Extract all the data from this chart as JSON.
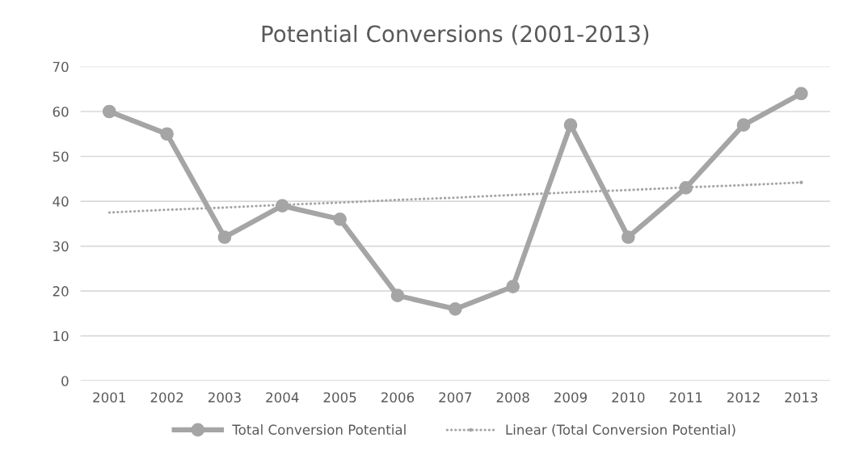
{
  "chart_data": {
    "type": "line",
    "title": "Potential Conversions (2001-2013)",
    "categories": [
      "2001",
      "2002",
      "2003",
      "2004",
      "2005",
      "2006",
      "2007",
      "2008",
      "2009",
      "2010",
      "2011",
      "2012",
      "2013"
    ],
    "series": [
      {
        "name": "Total Conversion Potential",
        "color": "#a5a5a5",
        "marker": "circle",
        "line_style": "solid",
        "values": [
          60,
          55,
          32,
          39,
          36,
          19,
          16,
          21,
          57,
          32,
          43,
          57,
          64
        ]
      },
      {
        "name": "Linear (Total Conversion Potential)",
        "type": "line",
        "color": "#a5a5a5",
        "marker": "none",
        "line_style": "dotted",
        "values": [
          37.5,
          38.1,
          38.6,
          39.2,
          39.7,
          40.3,
          40.8,
          41.4,
          42.0,
          42.5,
          43.1,
          43.6,
          44.2
        ]
      }
    ],
    "ylim": [
      0,
      70
    ],
    "yticks": [
      0,
      10,
      20,
      30,
      40,
      50,
      60,
      70
    ],
    "grid": "y",
    "legend": "bottom"
  }
}
